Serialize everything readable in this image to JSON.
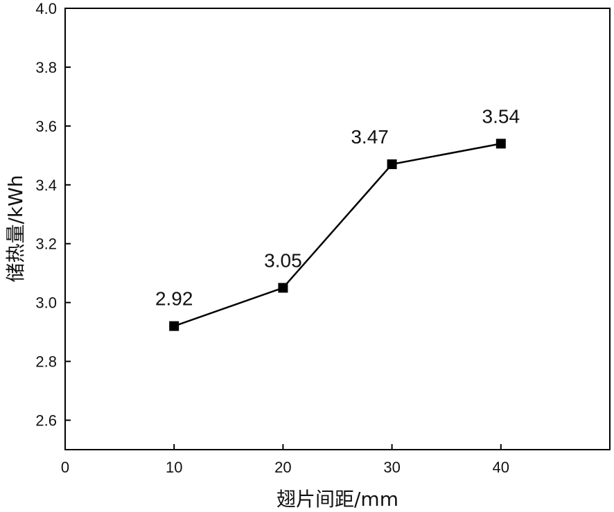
{
  "chart_data": {
    "type": "line",
    "title": "",
    "xlabel": "翅片间距/mm",
    "ylabel": "储热量/kWh",
    "xlim": [
      0,
      50
    ],
    "ylim": [
      2.5,
      4.0
    ],
    "x_ticks": [
      0,
      10,
      20,
      30,
      40
    ],
    "x_tick_labels": [
      "0",
      "10",
      "20",
      "30",
      "40"
    ],
    "y_ticks": [
      2.6,
      2.8,
      3.0,
      3.2,
      3.4,
      3.6,
      3.8,
      4.0
    ],
    "y_tick_labels": [
      "2.6",
      "2.8",
      "3.0",
      "3.2",
      "3.4",
      "3.6",
      "3.8",
      "4.0"
    ],
    "grid": false,
    "legend": "none",
    "series": [
      {
        "name": "储热量",
        "marker": "square",
        "color": "#000000",
        "x": [
          10,
          20,
          30,
          40
        ],
        "values": [
          2.92,
          3.05,
          3.47,
          3.54
        ],
        "labels": [
          "2.92",
          "3.05",
          "3.47",
          "3.54"
        ]
      }
    ]
  }
}
